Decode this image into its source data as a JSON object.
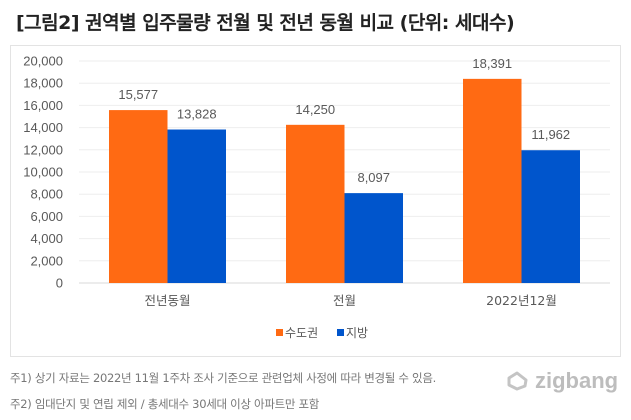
{
  "title": "[그림2] 권역별 입주물량 전월 및 전년 동월 비교 (단위: 세대수)",
  "chart_data": {
    "type": "bar",
    "title": "[그림2] 권역별 입주물량 전월 및 전년 동월 비교 (단위: 세대수)",
    "categories": [
      "전년동월",
      "전월",
      "2022년12월"
    ],
    "series": [
      {
        "name": "수도권",
        "color": "#ff6a13",
        "values": [
          15577,
          14250,
          18391
        ],
        "labels": [
          "15,577",
          "14,250",
          "18,391"
        ]
      },
      {
        "name": "지방",
        "color": "#0055cc",
        "values": [
          13828,
          8097,
          11962
        ],
        "labels": [
          "13,828",
          "8,097",
          "11,962"
        ]
      }
    ],
    "ylim": [
      0,
      20000
    ],
    "yticks": [
      0,
      2000,
      4000,
      6000,
      8000,
      10000,
      12000,
      14000,
      16000,
      18000,
      20000
    ],
    "ytick_labels": [
      "0",
      "2,000",
      "4,000",
      "6,000",
      "8,000",
      "10,000",
      "12,000",
      "14,000",
      "16,000",
      "18,000",
      "20,000"
    ],
    "xlabel": "",
    "ylabel": "",
    "grid": true,
    "legend": "bottom"
  },
  "notes": [
    "주1) 상기 자료는 2022년 11월 1주차 조사 기준으로 관련업체 사정에 따라 변경될 수 있음.",
    "주2) 임대단지 및 연립 제외 / 총세대수 30세대 이상 아파트만 포함"
  ],
  "logo": {
    "text": "zigbang"
  }
}
